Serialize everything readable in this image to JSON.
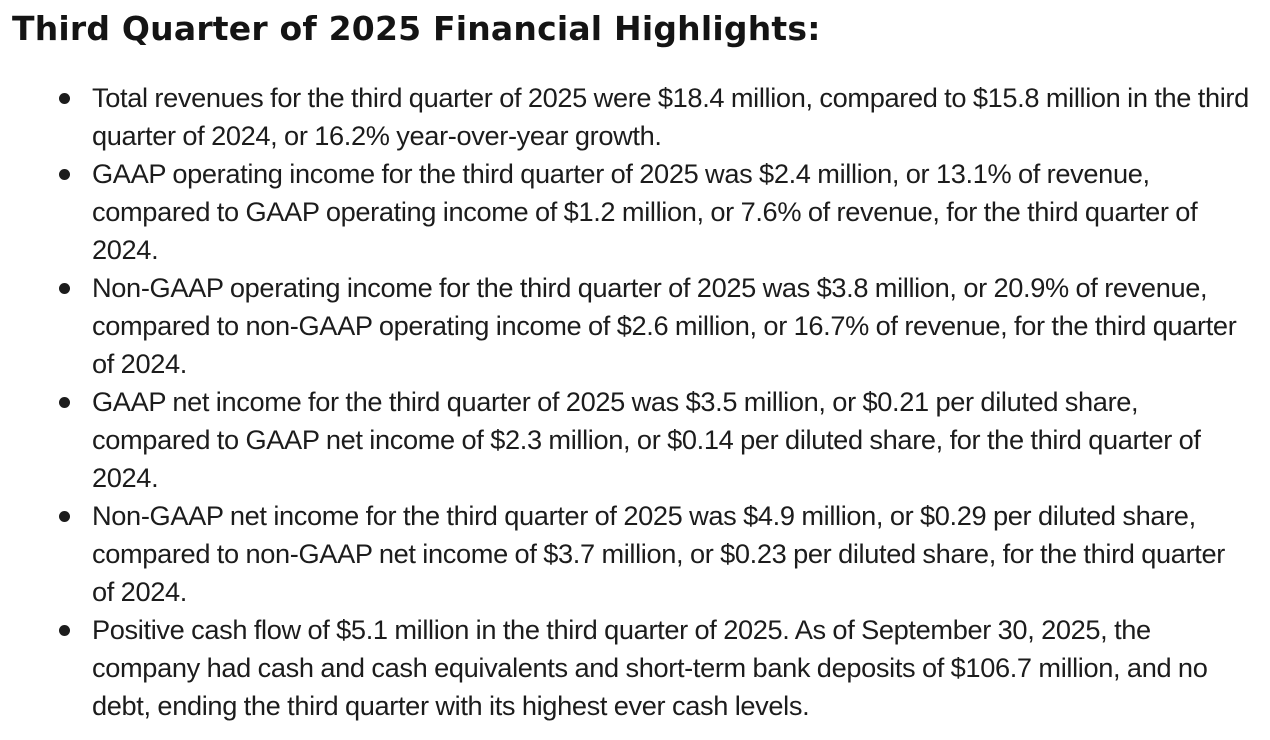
{
  "document": {
    "title": "Third Quarter of 2025 Financial Highlights:",
    "highlights": [
      {
        "topic": "Total revenues",
        "text": "Total revenues for the third quarter of 2025 were $18.4 million, compared to $15.8 million in the third quarter of 2024, or 16.2% year-over-year growth."
      },
      {
        "topic": "GAAP operating income",
        "text": "GAAP operating income for the third quarter of 2025 was $2.4 million, or 13.1% of revenue, compared to GAAP operating income of $1.2 million, or 7.6% of revenue, for the third quarter of 2024."
      },
      {
        "topic": "Non-GAAP operating income",
        "text": "Non-GAAP operating income for the third quarter of 2025 was $3.8 million, or 20.9% of revenue, compared to non-GAAP operating income of $2.6 million, or 16.7% of revenue, for the third quarter of 2024."
      },
      {
        "topic": "GAAP net income",
        "text": "GAAP net income for the third quarter of 2025 was $3.5 million, or $0.21 per diluted share, compared to GAAP net income of $2.3 million, or $0.14 per diluted share, for the third quarter of 2024."
      },
      {
        "topic": "Non-GAAP net income",
        "text": "Non-GAAP net income for the third quarter of 2025 was $4.9 million, or $0.29 per diluted share, compared to non-GAAP net income of $3.7 million, or $0.23 per diluted share, for the third quarter of 2024."
      },
      {
        "topic": "Cash flow",
        "text": "Positive cash flow of $5.1 million in the third quarter of 2025. As of September 30, 2025, the company had cash and cash equivalents and short-term bank deposits of $106.7 million, and no debt, ending the third quarter with its highest ever cash levels."
      }
    ]
  }
}
